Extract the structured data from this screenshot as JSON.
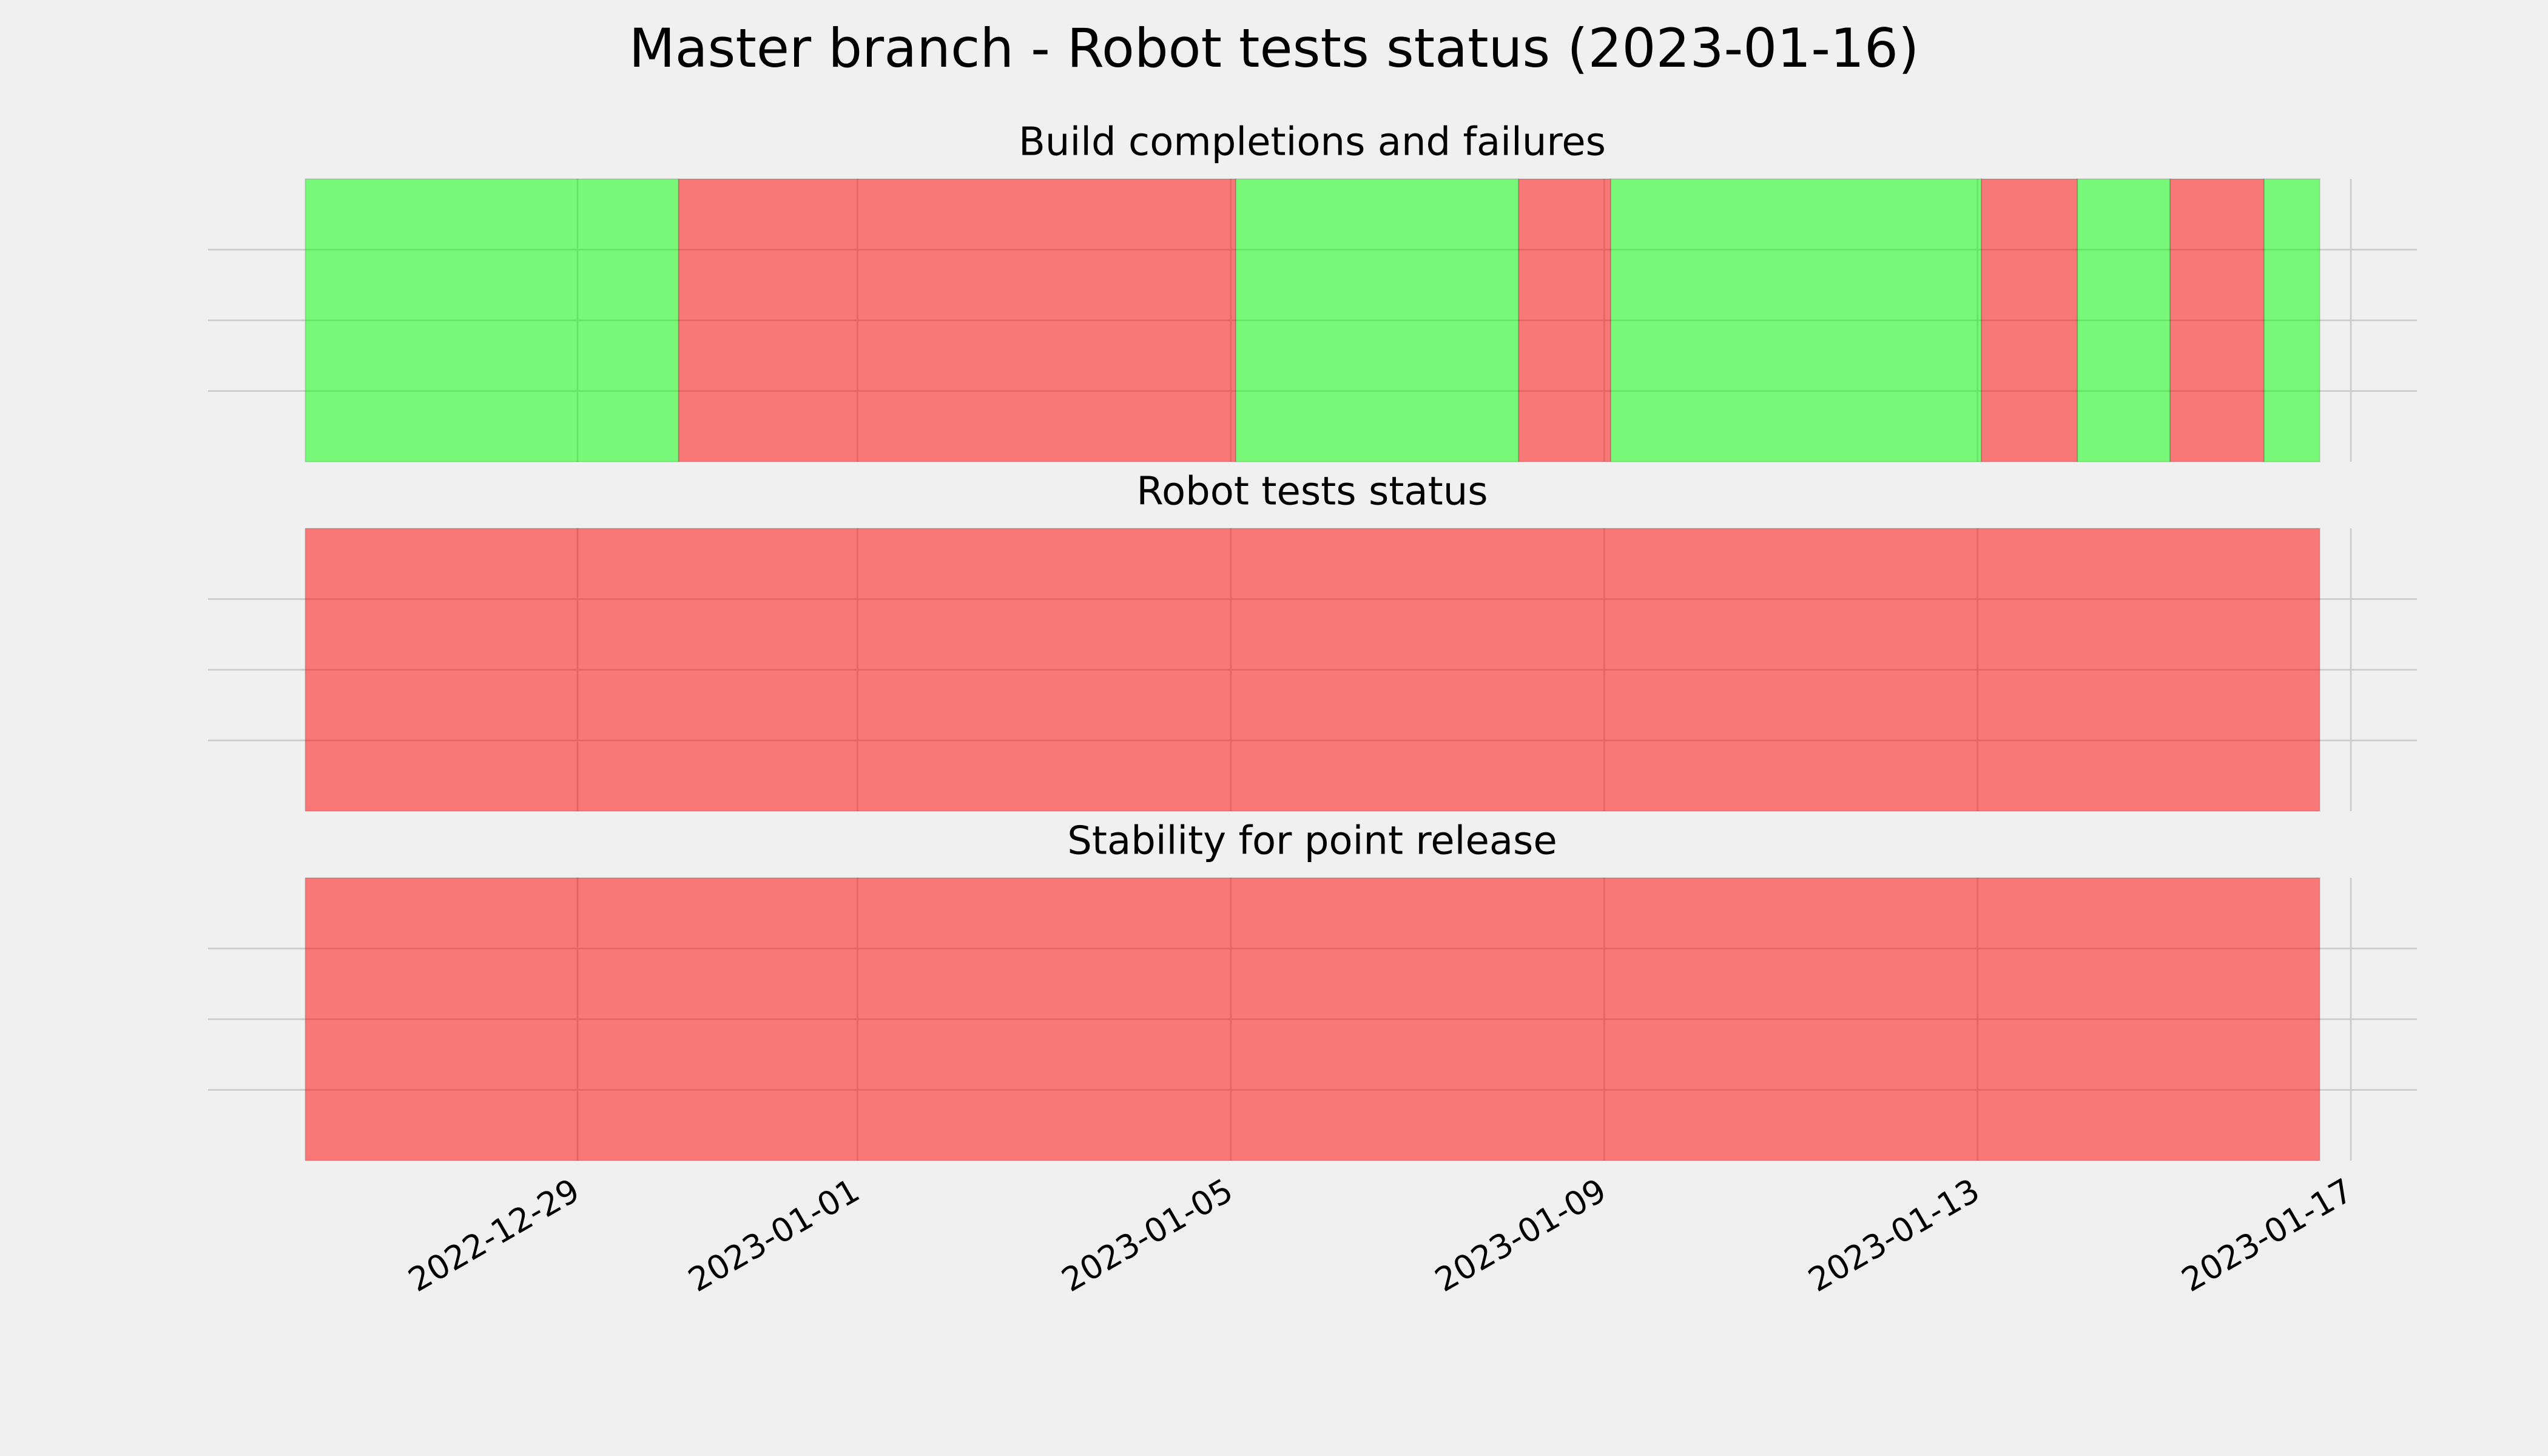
{
  "title": "Master branch - Robot tests status (2023-01-16)",
  "shared_x": {
    "xlim": [
      "2022-12-25T01:00",
      "2023-01-17T17:00"
    ],
    "xticks": [
      "2022-12-29",
      "2023-01-01",
      "2023-01-05",
      "2023-01-09",
      "2023-01-13",
      "2023-01-17"
    ]
  },
  "chart_data": [
    {
      "type": "timeline",
      "title": "Build completions and failures",
      "ylim": [
        0,
        1
      ],
      "yticks": [
        0.25,
        0.5,
        0.75
      ],
      "grid": true,
      "alpha": 0.5,
      "spans": [
        {
          "start": "2022-12-26T02:00",
          "end": "2022-12-30T02:00",
          "color": "#00ff00"
        },
        {
          "start": "2022-12-30T02:00",
          "end": "2023-01-05T01:15",
          "color": "#ff0000"
        },
        {
          "start": "2023-01-05T01:15",
          "end": "2023-01-08T02:00",
          "color": "#00ff00"
        },
        {
          "start": "2023-01-08T02:00",
          "end": "2023-01-09T01:40",
          "color": "#ff0000"
        },
        {
          "start": "2023-01-09T01:40",
          "end": "2023-01-13T01:00",
          "color": "#00ff00"
        },
        {
          "start": "2023-01-13T01:00",
          "end": "2023-01-14T01:40",
          "color": "#ff0000"
        },
        {
          "start": "2023-01-14T01:40",
          "end": "2023-01-15T01:30",
          "color": "#00ff00"
        },
        {
          "start": "2023-01-15T01:30",
          "end": "2023-01-16T01:40",
          "color": "#ff0000"
        },
        {
          "start": "2023-01-16T01:40",
          "end": "2023-01-16T16:00",
          "color": "#00ff00"
        }
      ]
    },
    {
      "type": "timeline",
      "title": "Robot tests status",
      "ylim": [
        0,
        1
      ],
      "yticks": [
        0.25,
        0.5,
        0.75
      ],
      "grid": true,
      "alpha": 0.5,
      "spans": [
        {
          "start": "2022-12-26T02:00",
          "end": "2023-01-16T16:00",
          "color": "#ff0000"
        }
      ]
    },
    {
      "type": "timeline",
      "title": "Stability for point release",
      "ylim": [
        0,
        1
      ],
      "yticks": [
        0.25,
        0.5,
        0.75
      ],
      "grid": true,
      "alpha": 0.5,
      "spans": [
        {
          "start": "2022-12-26T02:00",
          "end": "2023-01-16T16:00",
          "color": "#ff0000"
        }
      ]
    }
  ]
}
